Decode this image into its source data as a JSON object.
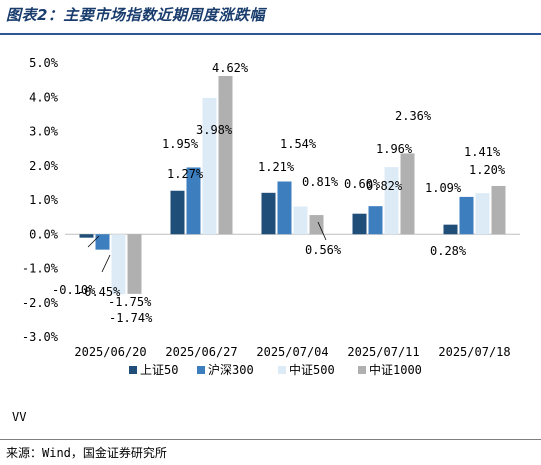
{
  "title": "图表2：主要市场指数近期周度涨跌幅",
  "footer": {
    "note": "VV",
    "source": "来源：Wind，国金证券研究所"
  },
  "chart_data": {
    "type": "bar",
    "categories": [
      "2025/06/20",
      "2025/06/27",
      "2025/07/04",
      "2025/07/11",
      "2025/07/18"
    ],
    "series": [
      {
        "name": "上证50",
        "color": "#1f4e79",
        "values": [
          -0.1,
          1.27,
          1.21,
          0.6,
          0.28
        ]
      },
      {
        "name": "沪深300",
        "color": "#3d7ebf",
        "values": [
          -0.45,
          1.95,
          1.54,
          0.82,
          1.09
        ]
      },
      {
        "name": "中证500",
        "color": "#ddebf7",
        "values": [
          -1.75,
          3.98,
          0.81,
          1.96,
          1.2
        ]
      },
      {
        "name": "中证1000",
        "color": "#b0b0b0",
        "values": [
          -1.74,
          4.62,
          0.56,
          2.36,
          1.41
        ]
      }
    ],
    "ylim": [
      -3.0,
      5.0
    ],
    "yticks": [
      5.0,
      4.0,
      3.0,
      2.0,
      1.0,
      0.0,
      -1.0,
      -2.0,
      -3.0
    ],
    "ytick_labels": [
      "5.0%",
      "4.0%",
      "3.0%",
      "2.0%",
      "1.0%",
      "0.0%",
      "-1.0%",
      "-2.0%",
      "-3.0%"
    ],
    "data_labels": [
      [
        "-0.10%",
        "1.27%",
        "1.21%",
        "0.60%",
        "0.28%"
      ],
      [
        "-0.45%",
        "1.95%",
        "1.54%",
        "0.82%",
        "1.09%"
      ],
      [
        "-1.75%",
        "3.98%",
        "0.81%",
        "1.96%",
        "1.20%"
      ],
      [
        "-1.74%",
        "4.62%",
        "0.56%",
        "2.36%",
        "1.41%"
      ]
    ],
    "grid": false,
    "legend": "bottom"
  }
}
